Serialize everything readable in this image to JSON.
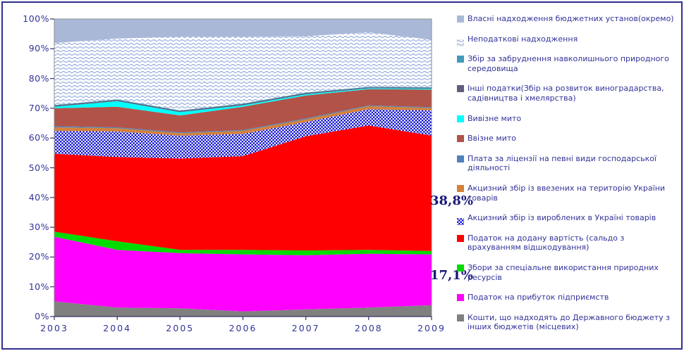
{
  "chart_data": {
    "type": "area",
    "stacking": "percent",
    "title": "",
    "grid": false,
    "legend_position": "right",
    "categories": [
      "2003",
      "2004",
      "2005",
      "2006",
      "2007",
      "2008",
      "2009"
    ],
    "y_axis": {
      "min": 0,
      "max": 100,
      "ticks": [
        "0%",
        "10%",
        "20%",
        "30%",
        "40%",
        "50%",
        "60%",
        "70%",
        "80%",
        "90%",
        "100%"
      ]
    },
    "axis_label_color": "#333399",
    "series_bottom_to_top": [
      {
        "name": "Кошти, що надходять до Державного бюджету з інших бюджетів (місцевих)",
        "color": "#808080",
        "values": [
          5.1,
          3.0,
          2.8,
          1.7,
          2.4,
          3.0,
          3.8
        ]
      },
      {
        "name": "Податок на прибуток підприємств",
        "color": "#ff00ff",
        "values": [
          21.7,
          19.4,
          18.5,
          19.2,
          18.2,
          18.1,
          17.1
        ]
      },
      {
        "name": "Збори за спеціальне використання природних ресурсів",
        "color": "#00db00",
        "values": [
          1.7,
          2.9,
          1.1,
          1.5,
          1.6,
          1.3,
          1.1
        ]
      },
      {
        "name": "Податок на додану вартість (сальдо з врахуванням відшкодування)",
        "color": "#ff0000",
        "values": [
          26.2,
          28.3,
          30.7,
          31.5,
          38.4,
          41.8,
          38.8
        ]
      },
      {
        "name": "Акцизний збір із вироблених в Україні товарів",
        "color": "#0000cc",
        "pattern": "checker",
        "values": [
          7.7,
          8.6,
          7.7,
          7.5,
          4.8,
          5.5,
          8.5
        ]
      },
      {
        "name": "Акцизний збір із ввезених на територію України товарів",
        "color": "#d4813a",
        "values": [
          1.2,
          1.1,
          0.8,
          1.0,
          0.9,
          1.0,
          0.8
        ]
      },
      {
        "name": "Плата за ліцензії на певні види господарської діяльності",
        "color": "#4f81ba",
        "values": [
          0.4,
          0.3,
          0.3,
          0.3,
          0.3,
          0.3,
          0.3
        ]
      },
      {
        "name": "Ввізне мито",
        "color": "#b25349",
        "values": [
          6.0,
          6.9,
          5.7,
          7.8,
          7.7,
          5.4,
          5.9
        ]
      },
      {
        "name": "Вивізне мито",
        "color": "#00ffff",
        "values": [
          0.5,
          1.9,
          1.1,
          0.5,
          0.4,
          0.3,
          0.3
        ]
      },
      {
        "name": "Інші податки(Збір на розвиток виноградарства, садівництва і хмелярства)",
        "color": "#5f5f7d",
        "values": [
          0.4,
          0.4,
          0.4,
          0.4,
          0.4,
          0.3,
          0.3
        ]
      },
      {
        "name": "Збір за забруднення навколишнього природного середовища",
        "color": "#409ab8",
        "values": [
          0.2,
          0.2,
          0.2,
          0.2,
          0.2,
          0.2,
          0.2
        ]
      },
      {
        "name": "Неподаткові надходження",
        "color": "#93a9dc",
        "pattern": "wave",
        "values": [
          20.8,
          20.4,
          24.7,
          22.4,
          18.9,
          18.3,
          15.9
        ]
      },
      {
        "name": "Власні надходження бюджетних установ(окремо)",
        "color": "#aab8d8",
        "values": [
          8.1,
          6.6,
          6.0,
          6.0,
          5.8,
          4.5,
          7.0
        ]
      }
    ],
    "annotations": [
      {
        "text": "38,8%",
        "anchor_pct": 38.7,
        "color": "#181878"
      },
      {
        "text": "17,1%",
        "anchor_pct": 13.6,
        "color": "#181878"
      }
    ]
  },
  "frame": {
    "border_color": "#2f2f8f",
    "background": "#ffffff"
  }
}
